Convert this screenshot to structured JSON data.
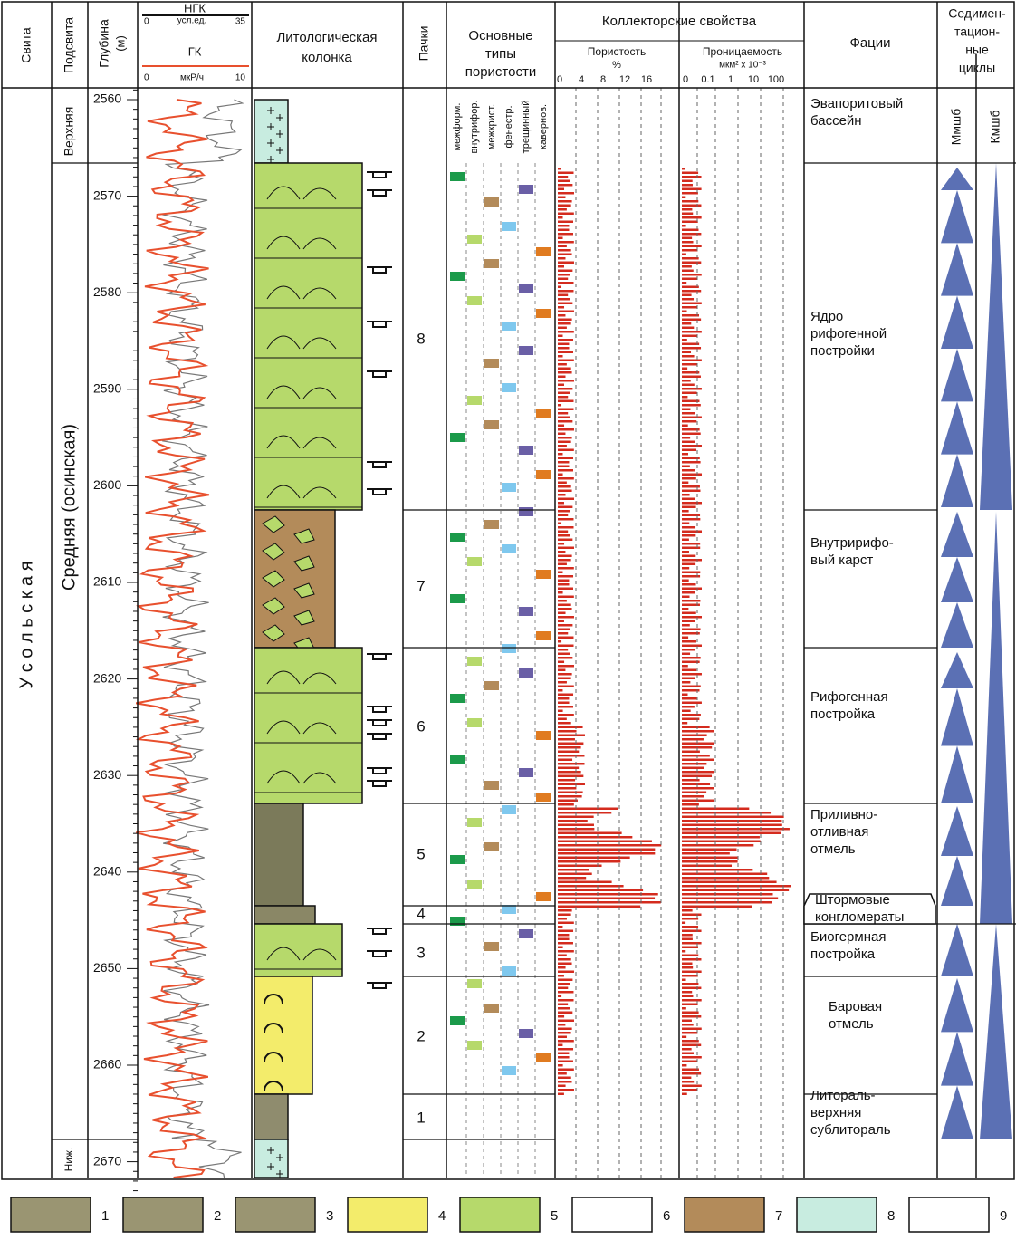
{
  "header": {
    "svita": "Свита",
    "podsvita": "Подсвита",
    "glubina": "Глубина",
    "glubina_unit": "(м)",
    "ngk": "НГК",
    "ngk_unit": "усл.ед.",
    "ngk_min": "0",
    "ngk_max": "35",
    "gk": "ГК",
    "gk_unit": "мкР/ч",
    "gk_min": "0",
    "gk_max": "10",
    "litho": [
      "Литологическая",
      "колонка"
    ],
    "pachki": "Пачки",
    "poro_types": [
      "Основные",
      "типы",
      "пористости"
    ],
    "kollektor": "Коллекторские свойства",
    "poristost": "Пористость",
    "poristost_unit": "%",
    "poro_ticks": [
      "0",
      "4",
      "8",
      "12",
      "16"
    ],
    "pronic": "Проницаемость",
    "pronic_unit": "мкм² x 10⁻³",
    "perm_ticks": [
      "0",
      "0.1",
      "1",
      "10",
      "100"
    ],
    "facii": "Фации",
    "sediment": [
      "Седимен-",
      "тацион-",
      "ные",
      "циклы"
    ]
  },
  "porosity_types": [
    "межформ.",
    "внутрифор.",
    "межкрист.",
    "фенестр.",
    "трещинный",
    "кавернов."
  ],
  "svita": "У с о л ь с к а я",
  "podsvita": [
    "Верхняя",
    "Средняя (осинская)",
    "Ниж."
  ],
  "depths": [
    "2560",
    "2570",
    "2580",
    "2590",
    "2600",
    "2610",
    "2620",
    "2630",
    "2640",
    "2650",
    "2660",
    "2670"
  ],
  "packs": [
    "8",
    "7",
    "6",
    "5",
    "4",
    "3",
    "2",
    "1"
  ],
  "facies": [
    [
      "Эвапоритовый",
      "бассейн"
    ],
    [
      "Ядро",
      "рифогенной",
      "постройки"
    ],
    [
      "Внутририфо-",
      "вый карст"
    ],
    [
      "Рифогенная",
      "постройка"
    ],
    [
      "Приливно-",
      "отливная",
      "отмель"
    ],
    [
      "Штормовые",
      "конгломераты"
    ],
    [
      "Биогермная",
      "постройка"
    ],
    [
      "Баровая",
      "отмель"
    ],
    [
      "Литораль-",
      "верхняя",
      "сублитораль"
    ]
  ],
  "cycles": [
    "Ммшб",
    "Кмшб"
  ],
  "legend": [
    "1",
    "2",
    "3",
    "4",
    "5",
    "6",
    "7",
    "8",
    "9"
  ]
}
